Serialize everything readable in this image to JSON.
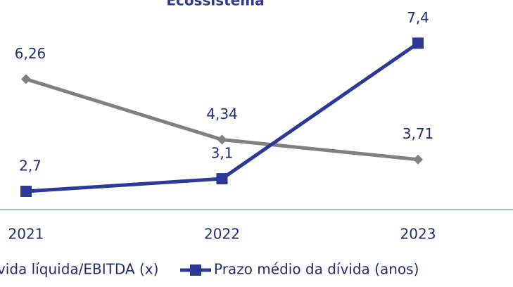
{
  "chart_data": {
    "type": "line",
    "title": "Ecossistema",
    "categories": [
      "2021",
      "2022",
      "2023"
    ],
    "series": [
      {
        "name": "Dívida líquida/EBITDA (x)",
        "color": "#808080",
        "marker": "diamond",
        "values": [
          6.26,
          4.34,
          3.71
        ],
        "value_labels": [
          "6,26",
          "4,34",
          "3,71"
        ]
      },
      {
        "name": "Prazo médio da dívida (anos)",
        "color": "#2b3a98",
        "marker": "square",
        "values": [
          2.7,
          3.1,
          7.4
        ],
        "value_labels": [
          "2,7",
          "3,1",
          "7,4"
        ]
      }
    ],
    "ylim": [
      2.12,
      8.77
    ],
    "legend": "bottom"
  }
}
